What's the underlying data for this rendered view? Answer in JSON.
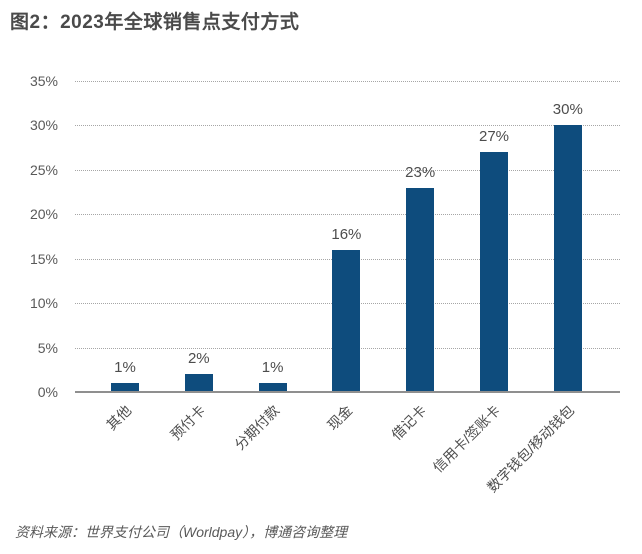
{
  "title": "图2：2023年全球销售点支付方式",
  "source": "资料来源：世界支付公司（Worldpay），博通咨询整理",
  "colors": {
    "bar": "#0e4c7d",
    "title_text": "#4a4a4a",
    "axis_text": "#595959",
    "gridline": "#a6a6a6",
    "baseline": "#8f8f8f",
    "background": "#ffffff"
  },
  "chart_data": {
    "type": "bar",
    "title": "图2：2023年全球销售点支付方式",
    "categories": [
      "其他",
      "预付卡",
      "分期付款",
      "现金",
      "借记卡",
      "信用卡/签账卡",
      "数字钱包/移动钱包"
    ],
    "values": [
      1,
      2,
      1,
      16,
      23,
      27,
      30
    ],
    "value_labels": [
      "1%",
      "2%",
      "1%",
      "16%",
      "23%",
      "27%",
      "30%"
    ],
    "y_ticks": [
      "0%",
      "5%",
      "10%",
      "15%",
      "20%",
      "25%",
      "30%",
      "35%"
    ],
    "ylim": [
      0,
      35
    ],
    "y_step": 5,
    "xlabel": "",
    "ylabel": "",
    "grid": true,
    "legend": "none",
    "bar_color": "#0e4c7d"
  }
}
